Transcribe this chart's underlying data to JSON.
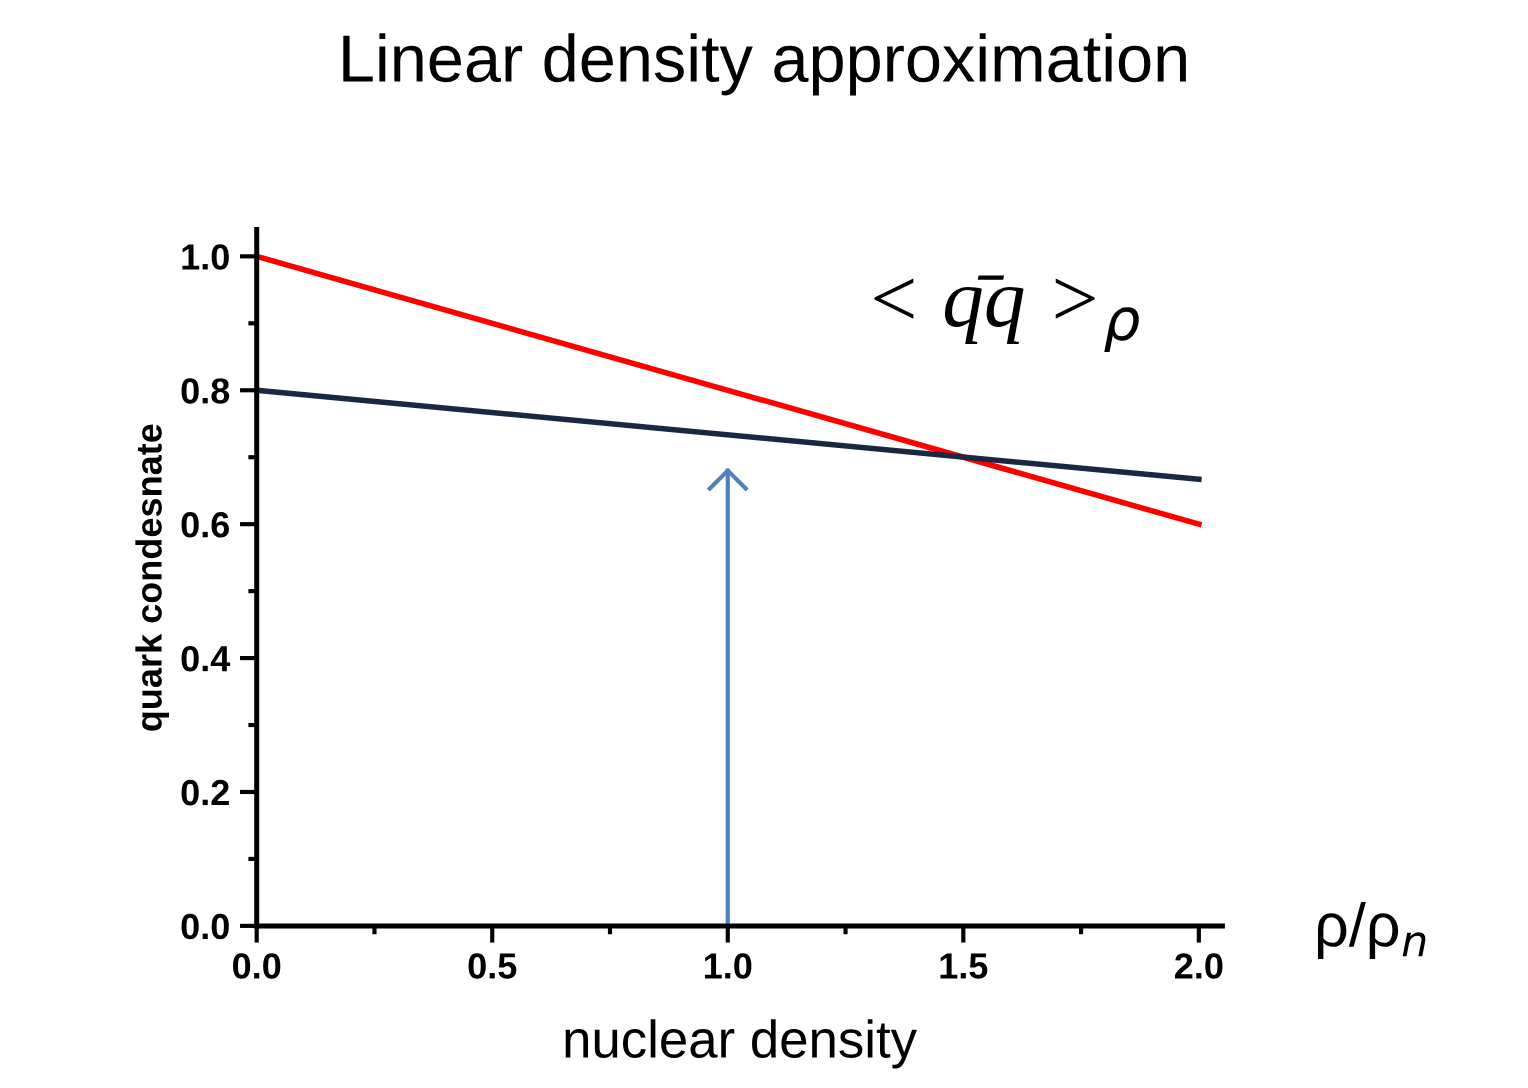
{
  "chart_data": {
    "type": "line",
    "title": "Linear density approximation",
    "xlabel": "nuclear density",
    "ylabel": "quark condesnate",
    "x": [
      0,
      2
    ],
    "series": [
      {
        "color": "#ff0000",
        "values": [
          1.0,
          0.6
        ]
      },
      {
        "color": "#1a2740",
        "values": [
          0.8,
          0.667
        ]
      },
      {
        "color": "#4f81bd",
        "x": [
          1,
          1
        ],
        "values": [
          0,
          0.68
        ]
      }
    ],
    "xlim": [
      0,
      2.05
    ],
    "ylim": [
      0,
      1.04
    ],
    "xticks": [
      {
        "value": 0,
        "label": "0.0"
      },
      0.5,
      {
        "value": 1,
        "label": "1.0"
      },
      1.5,
      {
        "value": 2,
        "label": "2.0"
      }
    ],
    "yticks": [
      {
        "value": 0,
        "label": "0.0"
      },
      0.2,
      0.4,
      0.6,
      0.8,
      {
        "value": 1,
        "label": "1.0"
      }
    ],
    "annotations": [
      "< q̄q >$_{ρ}$",
      "ρ/ρ$_{n}$"
    ],
    "grid": false,
    "legend": false,
    "marker": "none",
    "line_style": "solid"
  }
}
